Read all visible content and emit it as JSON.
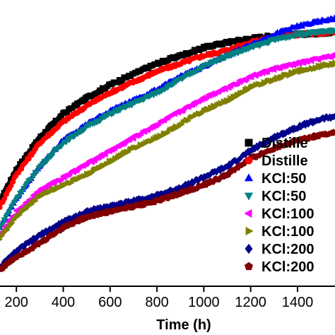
{
  "chart_data": {
    "type": "scatter",
    "xlabel": "Time (h)",
    "ylabel": "",
    "title": "",
    "xlim": [
      130,
      1560
    ],
    "ylim": [
      0,
      1
    ],
    "x_ticks": [
      200,
      400,
      600,
      800,
      1000,
      1200,
      1400
    ],
    "x_tick_labels": [
      "200",
      "400",
      "600",
      "800",
      "1000",
      "1200",
      "1400"
    ],
    "legend_placement": "bottom-right",
    "series": [
      {
        "name": "Distille",
        "marker": "square",
        "color": "#000000",
        "x": [
          130,
          200,
          300,
          400,
          500,
          600,
          700,
          800,
          900,
          1000,
          1100,
          1200,
          1300,
          1400,
          1500,
          1560
        ],
        "y": [
          0.32,
          0.44,
          0.56,
          0.65,
          0.71,
          0.76,
          0.8,
          0.84,
          0.87,
          0.9,
          0.92,
          0.935,
          0.945,
          0.95,
          0.955,
          0.96
        ]
      },
      {
        "name": "Distille",
        "marker": "circle",
        "color": "#ff0000",
        "x": [
          130,
          200,
          300,
          400,
          500,
          600,
          700,
          800,
          900,
          1000,
          1100,
          1200,
          1300,
          1400,
          1500,
          1560
        ],
        "y": [
          0.3,
          0.42,
          0.54,
          0.62,
          0.68,
          0.73,
          0.77,
          0.81,
          0.84,
          0.87,
          0.89,
          0.92,
          0.94,
          0.95,
          0.955,
          0.96
        ]
      },
      {
        "name": "KCl:50",
        "marker": "triangle-up",
        "color": "#0000ff",
        "x": [
          130,
          200,
          300,
          400,
          500,
          600,
          700,
          800,
          900,
          1000,
          1100,
          1200,
          1300,
          1400,
          1500,
          1560
        ],
        "y": [
          0.22,
          0.33,
          0.45,
          0.55,
          0.61,
          0.66,
          0.7,
          0.74,
          0.79,
          0.83,
          0.87,
          0.91,
          0.95,
          0.98,
          1.0,
          1.01
        ]
      },
      {
        "name": "KCl:50",
        "marker": "triangle-down",
        "color": "#008080",
        "x": [
          130,
          200,
          300,
          400,
          500,
          600,
          700,
          800,
          900,
          1000,
          1100,
          1200,
          1300,
          1400,
          1500,
          1560
        ],
        "y": [
          0.22,
          0.33,
          0.45,
          0.54,
          0.6,
          0.65,
          0.69,
          0.73,
          0.78,
          0.83,
          0.87,
          0.9,
          0.93,
          0.95,
          0.96,
          0.965
        ]
      },
      {
        "name": "KCl:100",
        "marker": "triangle-left",
        "color": "#ff00ff",
        "x": [
          130,
          200,
          300,
          400,
          500,
          600,
          700,
          800,
          900,
          1000,
          1100,
          1200,
          1300,
          1400,
          1500,
          1560
        ],
        "y": [
          0.19,
          0.28,
          0.36,
          0.41,
          0.46,
          0.51,
          0.56,
          0.61,
          0.66,
          0.71,
          0.75,
          0.79,
          0.82,
          0.84,
          0.86,
          0.87
        ]
      },
      {
        "name": "KCl:100",
        "marker": "triangle-right",
        "color": "#808000",
        "x": [
          130,
          200,
          300,
          400,
          500,
          600,
          700,
          800,
          900,
          1000,
          1100,
          1200,
          1300,
          1400,
          1500,
          1560
        ],
        "y": [
          0.18,
          0.26,
          0.34,
          0.38,
          0.42,
          0.47,
          0.52,
          0.56,
          0.61,
          0.66,
          0.7,
          0.75,
          0.78,
          0.81,
          0.83,
          0.84
        ]
      },
      {
        "name": "KCl:200",
        "marker": "diamond",
        "color": "#00008b",
        "x": [
          130,
          200,
          300,
          400,
          500,
          600,
          700,
          800,
          900,
          1000,
          1100,
          1200,
          1300,
          1400,
          1500,
          1560
        ],
        "y": [
          0.07,
          0.13,
          0.19,
          0.24,
          0.28,
          0.3,
          0.32,
          0.34,
          0.37,
          0.41,
          0.45,
          0.51,
          0.56,
          0.6,
          0.63,
          0.64
        ]
      },
      {
        "name": "KCl:200",
        "marker": "pentagon",
        "color": "#800000",
        "x": [
          130,
          200,
          300,
          400,
          500,
          600,
          700,
          800,
          900,
          1000,
          1100,
          1200,
          1300,
          1400,
          1500,
          1560
        ],
        "y": [
          0.06,
          0.11,
          0.16,
          0.22,
          0.26,
          0.28,
          0.3,
          0.32,
          0.35,
          0.38,
          0.42,
          0.48,
          0.52,
          0.55,
          0.57,
          0.58
        ]
      }
    ]
  }
}
